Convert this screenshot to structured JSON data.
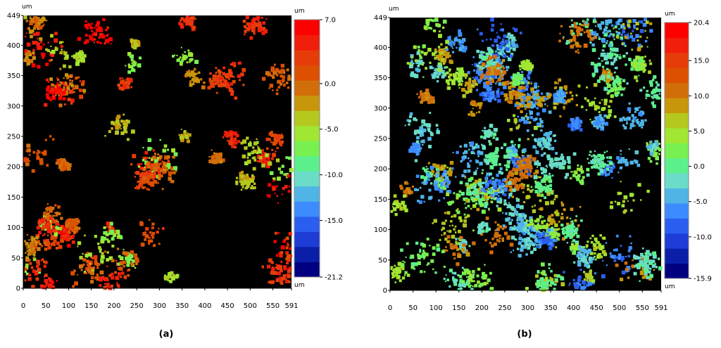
{
  "chart_data": [
    {
      "type": "heatmap",
      "panel_label": "(a)",
      "unit_label": "um",
      "x_unit_label": "um",
      "y_unit_label": "um",
      "x_ticks": [
        0,
        50,
        100,
        150,
        200,
        250,
        300,
        350,
        400,
        450,
        500,
        550,
        591
      ],
      "y_ticks": [
        0,
        50,
        100,
        150,
        200,
        250,
        300,
        350,
        400,
        449
      ],
      "xlim": [
        0,
        591
      ],
      "ylim": [
        0,
        449
      ],
      "zlim": [
        -21.2,
        7.0
      ],
      "colorbar_ticks": [
        "7.0",
        "0.0",
        "-5.0",
        "-10.0",
        "-15.0",
        "-21.2"
      ],
      "colorbar_tick_values": [
        7.0,
        0.0,
        -5.0,
        -10.0,
        -15.0,
        -21.2
      ],
      "colorbar_colors": [
        "#000080",
        "#0a1ea8",
        "#1e3cd6",
        "#2a5ef0",
        "#3c8cff",
        "#50b4e6",
        "#6adcc8",
        "#5cf08c",
        "#78f050",
        "#a0e632",
        "#b4c81e",
        "#c8960a",
        "#d26e0a",
        "#dc5000",
        "#e63c0a",
        "#f01e0a",
        "#ff0000"
      ],
      "z_distribution": {
        "min": -10.0,
        "mode": 0.0,
        "max": 7.0
      },
      "background": "#000000"
    },
    {
      "type": "heatmap",
      "panel_label": "(b)",
      "unit_label": "um",
      "x_unit_label": "um",
      "y_unit_label": "um",
      "x_ticks": [
        0,
        50,
        100,
        150,
        200,
        250,
        300,
        350,
        400,
        450,
        500,
        550,
        591
      ],
      "y_ticks": [
        0,
        50,
        100,
        150,
        200,
        250,
        300,
        350,
        400,
        449
      ],
      "xlim": [
        0,
        591
      ],
      "ylim": [
        0,
        449
      ],
      "zlim": [
        -15.9,
        20.4
      ],
      "colorbar_ticks": [
        "20.4",
        "15.0",
        "10.0",
        "5.0",
        "0.0",
        "-5.0",
        "-10.0",
        "-15.9"
      ],
      "colorbar_tick_values": [
        20.4,
        15.0,
        10.0,
        5.0,
        0.0,
        -5.0,
        -10.0,
        -15.9
      ],
      "colorbar_colors": [
        "#000080",
        "#0a1ea8",
        "#1e3cd6",
        "#2a5ef0",
        "#3c8cff",
        "#50b4e6",
        "#6adcc8",
        "#5cf08c",
        "#78f050",
        "#a0e632",
        "#b4c81e",
        "#c8960a",
        "#d26e0a",
        "#dc5000",
        "#e63c0a",
        "#f01e0a",
        "#ff0000"
      ],
      "z_distribution": {
        "min": -12.0,
        "mode": 0.0,
        "max": 12.0
      },
      "background": "#000000"
    }
  ]
}
